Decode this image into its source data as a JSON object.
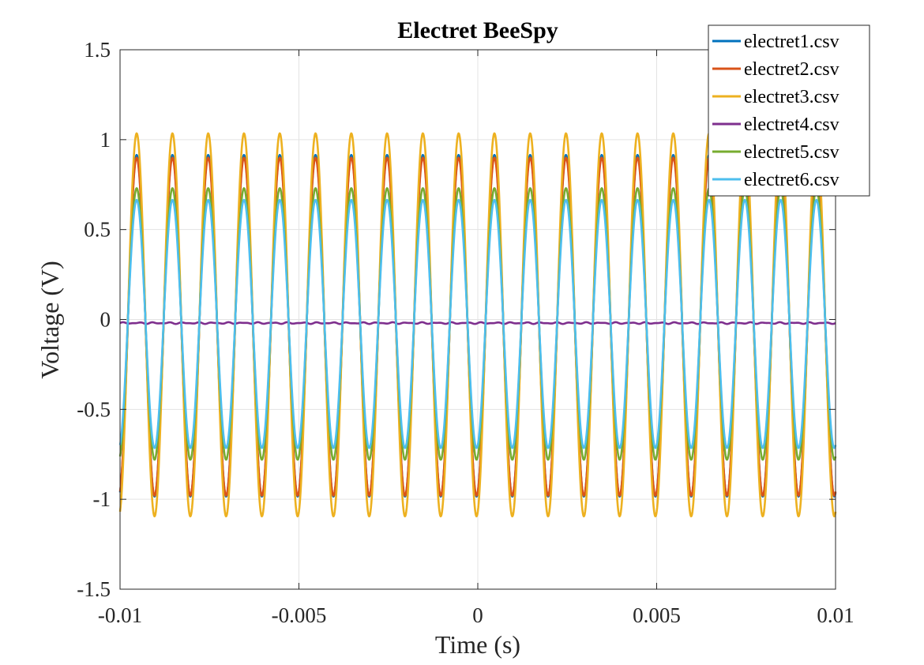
{
  "chart_data": {
    "type": "line",
    "title": "Electret BeeSpy",
    "xlabel": "Time (s)",
    "ylabel": "Voltage (V)",
    "xlim": [
      -0.01,
      0.01
    ],
    "ylim": [
      -1.5,
      1.5
    ],
    "xticks": [
      -0.01,
      -0.005,
      0,
      0.005,
      0.01
    ],
    "xtick_labels": [
      "-0.01",
      "-0.005",
      "0",
      "0.005",
      "0.01"
    ],
    "yticks": [
      -1.5,
      -1,
      -0.5,
      0,
      0.5,
      1,
      1.5
    ],
    "ytick_labels": [
      "-1.5",
      "-1",
      "-0.5",
      "0",
      "0.5",
      "1",
      "1.5"
    ],
    "grid": true,
    "legend_position": "top-right",
    "signal_frequency_hz": 1000,
    "series": [
      {
        "name": "electret1.csv",
        "color": "#0072BD",
        "offset": -0.035,
        "amplitude": 0.95,
        "phase": -1.35
      },
      {
        "name": "electret2.csv",
        "color": "#D95319",
        "offset": -0.04,
        "amplitude": 0.94,
        "phase": -1.35
      },
      {
        "name": "electret3.csv",
        "color": "#EDB120",
        "offset": -0.03,
        "amplitude": 1.065,
        "phase": -1.35
      },
      {
        "name": "electret4.csv",
        "color": "#7E2F8E",
        "offset": -0.02,
        "amplitude": 0.0,
        "phase": 0
      },
      {
        "name": "electret5.csv",
        "color": "#77AC30",
        "offset": -0.025,
        "amplitude": 0.755,
        "phase": -1.35
      },
      {
        "name": "electret6.csv",
        "color": "#4DBEEE",
        "offset": -0.025,
        "amplitude": 0.69,
        "phase": -1.35
      }
    ]
  }
}
